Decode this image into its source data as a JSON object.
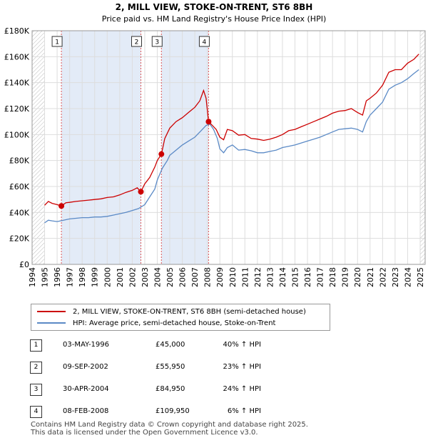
{
  "chart_data": {
    "type": "line",
    "title": "2, MILL VIEW, STOKE-ON-TRENT, ST6 8BH",
    "subtitle": "Price paid vs. HM Land Registry's House Price Index (HPI)",
    "xlim": [
      1994,
      2025.4
    ],
    "ylim": [
      0,
      180000
    ],
    "x_ticks": [
      1994,
      1995,
      1996,
      1997,
      1998,
      1999,
      2000,
      2001,
      2002,
      2003,
      2004,
      2005,
      2006,
      2007,
      2008,
      2009,
      2010,
      2011,
      2012,
      2013,
      2014,
      2015,
      2016,
      2017,
      2018,
      2019,
      2020,
      2021,
      2022,
      2023,
      2024,
      2025
    ],
    "y_ticks": [
      {
        "value": 0,
        "label": "£0"
      },
      {
        "value": 20000,
        "label": "£20K"
      },
      {
        "value": 40000,
        "label": "£40K"
      },
      {
        "value": 60000,
        "label": "£60K"
      },
      {
        "value": 80000,
        "label": "£80K"
      },
      {
        "value": 100000,
        "label": "£100K"
      },
      {
        "value": 120000,
        "label": "£120K"
      },
      {
        "value": 140000,
        "label": "£140K"
      },
      {
        "value": 160000,
        "label": "£160K"
      },
      {
        "value": 180000,
        "label": "£180K"
      }
    ],
    "colors": {
      "property": "#cc0000",
      "hpi": "#5b8ac6",
      "shade": "#e3ebf7",
      "vline": "#dd5555",
      "grid": "#dddddd",
      "hatch": "#bbbbbb"
    },
    "shaded_ranges": [
      [
        1996.34,
        2002.69
      ],
      [
        2004.33,
        2008.1
      ]
    ],
    "hatched_ranges": [
      [
        1994,
        1995.0
      ],
      [
        2025.0,
        2025.4
      ]
    ],
    "series": [
      {
        "name": "2, MILL VIEW, STOKE-ON-TRENT, ST6 8BH (semi-detached house)",
        "key": "property",
        "x": [
          1995.0,
          1995.3,
          1995.6,
          1996.0,
          1996.34,
          1996.7,
          1997.0,
          1997.5,
          1998.0,
          1998.5,
          1999.0,
          1999.5,
          2000.0,
          2000.5,
          2001.0,
          2001.5,
          2002.0,
          2002.4,
          2002.69,
          2003.0,
          2003.4,
          2003.8,
          2004.0,
          2004.33,
          2004.6,
          2005.0,
          2005.5,
          2006.0,
          2006.5,
          2007.0,
          2007.4,
          2007.7,
          2007.9,
          2008.1,
          2008.4,
          2008.7,
          2009.0,
          2009.3,
          2009.6,
          2010.0,
          2010.5,
          2011.0,
          2011.5,
          2012.0,
          2012.5,
          2013.0,
          2013.5,
          2014.0,
          2014.5,
          2015.0,
          2015.5,
          2016.0,
          2016.5,
          2017.0,
          2017.5,
          2018.0,
          2018.5,
          2019.0,
          2019.5,
          2020.0,
          2020.4,
          2020.7,
          2021.0,
          2021.5,
          2022.0,
          2022.5,
          2023.0,
          2023.5,
          2024.0,
          2024.5,
          2024.9
        ],
        "y": [
          45500,
          48500,
          47000,
          46000,
          45000,
          47500,
          47800,
          48500,
          49000,
          49500,
          50000,
          50500,
          51500,
          52000,
          53500,
          55500,
          57000,
          59000,
          55950,
          62000,
          67000,
          75000,
          80000,
          84950,
          97000,
          105000,
          110000,
          113000,
          117000,
          121000,
          126000,
          134000,
          128000,
          109950,
          107000,
          104000,
          98000,
          96000,
          104000,
          103000,
          99500,
          100000,
          97000,
          96500,
          95500,
          96500,
          98000,
          100000,
          103000,
          104000,
          106000,
          108000,
          110000,
          112000,
          114000,
          116500,
          118000,
          118500,
          120000,
          117000,
          115000,
          126000,
          128000,
          132000,
          138000,
          148000,
          150000,
          150000,
          155000,
          158000,
          162000
        ]
      },
      {
        "name": "HPI: Average price, semi-detached house, Stoke-on-Trent",
        "key": "hpi",
        "x": [
          1995.0,
          1995.3,
          1995.6,
          1996.0,
          1996.5,
          1997.0,
          1997.5,
          1998.0,
          1998.5,
          1999.0,
          1999.5,
          2000.0,
          2000.5,
          2001.0,
          2001.5,
          2002.0,
          2002.5,
          2003.0,
          2003.4,
          2003.8,
          2004.0,
          2004.4,
          2004.8,
          2005.0,
          2005.5,
          2006.0,
          2006.5,
          2007.0,
          2007.5,
          2007.9,
          2008.2,
          2008.5,
          2008.8,
          2009.0,
          2009.3,
          2009.6,
          2010.0,
          2010.5,
          2011.0,
          2011.5,
          2012.0,
          2012.5,
          2013.0,
          2013.5,
          2014.0,
          2014.5,
          2015.0,
          2015.5,
          2016.0,
          2016.5,
          2017.0,
          2017.5,
          2018.0,
          2018.5,
          2019.0,
          2019.5,
          2020.0,
          2020.4,
          2020.7,
          2021.0,
          2021.5,
          2022.0,
          2022.5,
          2023.0,
          2023.5,
          2024.0,
          2024.5,
          2024.9
        ],
        "y": [
          32000,
          34000,
          33500,
          33000,
          34000,
          35000,
          35500,
          36000,
          36000,
          36500,
          36500,
          37000,
          38000,
          39000,
          40000,
          41500,
          43000,
          46000,
          52000,
          58000,
          65000,
          74000,
          80000,
          84000,
          88000,
          92000,
          95000,
          98000,
          103000,
          107000,
          108000,
          104000,
          97000,
          89000,
          86000,
          90000,
          92000,
          88000,
          88500,
          87500,
          86000,
          86000,
          87000,
          88000,
          90000,
          91000,
          92000,
          93500,
          95000,
          96500,
          98000,
          100000,
          102000,
          104000,
          104500,
          105000,
          104000,
          102000,
          110000,
          115000,
          120000,
          125000,
          135000,
          138000,
          140000,
          143000,
          147000,
          150000
        ]
      }
    ],
    "transactions": [
      {
        "num": "1",
        "date": "03-MAY-1996",
        "price": "£45,000",
        "hpi": "40% ↑ HPI",
        "x": 1996.34,
        "y": 45000
      },
      {
        "num": "2",
        "date": "09-SEP-2002",
        "price": "£55,950",
        "hpi": "23% ↑ HPI",
        "x": 2002.69,
        "y": 55950
      },
      {
        "num": "3",
        "date": "30-APR-2004",
        "price": "£84,950",
        "hpi": "24% ↑ HPI",
        "x": 2004.33,
        "y": 84950
      },
      {
        "num": "4",
        "date": "08-FEB-2008",
        "price": "£109,950",
        "hpi": "6% ↑ HPI",
        "x": 2008.1,
        "y": 109950
      }
    ]
  },
  "legend": {
    "property_label": "2, MILL VIEW, STOKE-ON-TRENT, ST6 8BH (semi-detached house)",
    "hpi_label": "HPI: Average price, semi-detached house, Stoke-on-Trent"
  },
  "footer": {
    "line1": "Contains HM Land Registry data © Crown copyright and database right 2025.",
    "line2": "This data is licensed under the Open Government Licence v3.0."
  }
}
